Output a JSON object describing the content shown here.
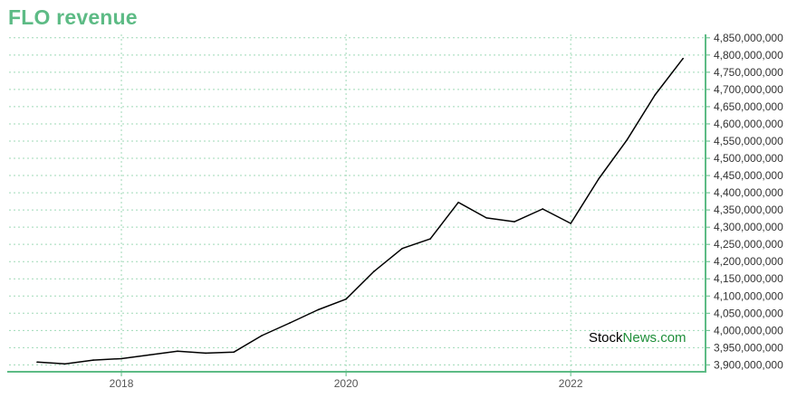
{
  "title": "FLO revenue",
  "watermark": {
    "part1": "Stock",
    "part2": "News",
    "part3": ".com"
  },
  "colors": {
    "title": "#5dbb85",
    "axis": "#5dbb85",
    "grid": "#9fd9b7",
    "line": "#000000"
  },
  "chart_data": {
    "type": "line",
    "title": "FLO revenue",
    "xlabel": "",
    "ylabel": "",
    "x_range": [
      2017.0,
      2023.2
    ],
    "ylim": [
      3880000000,
      4860000000
    ],
    "y_axis_position": "right",
    "grid": true,
    "x_ticks": [
      {
        "value": 2018,
        "label": "2018"
      },
      {
        "value": 2020,
        "label": "2020"
      },
      {
        "value": 2022,
        "label": "2022"
      }
    ],
    "y_ticks": [
      {
        "value": 3900000000,
        "label": "3,900,000,000"
      },
      {
        "value": 3950000000,
        "label": "3,950,000,000"
      },
      {
        "value": 4000000000,
        "label": "4,000,000,000"
      },
      {
        "value": 4050000000,
        "label": "4,050,000,000"
      },
      {
        "value": 4100000000,
        "label": "4,100,000,000"
      },
      {
        "value": 4150000000,
        "label": "4,150,000,000"
      },
      {
        "value": 4200000000,
        "label": "4,200,000,000"
      },
      {
        "value": 4250000000,
        "label": "4,250,000,000"
      },
      {
        "value": 4300000000,
        "label": "4,300,000,000"
      },
      {
        "value": 4350000000,
        "label": "4,350,000,000"
      },
      {
        "value": 4400000000,
        "label": "4,400,000,000"
      },
      {
        "value": 4450000000,
        "label": "4,450,000,000"
      },
      {
        "value": 4500000000,
        "label": "4,500,000,000"
      },
      {
        "value": 4550000000,
        "label": "4,550,000,000"
      },
      {
        "value": 4600000000,
        "label": "4,600,000,000"
      },
      {
        "value": 4650000000,
        "label": "4,650,000,000"
      },
      {
        "value": 4700000000,
        "label": "4,700,000,000"
      },
      {
        "value": 4750000000,
        "label": "4,750,000,000"
      },
      {
        "value": 4800000000,
        "label": "4,800,000,000"
      },
      {
        "value": 4850000000,
        "label": "4,850,000,000"
      }
    ],
    "series": [
      {
        "points": [
          [
            2017.25,
            3908000000
          ],
          [
            2017.5,
            3903000000
          ],
          [
            2017.75,
            3914000000
          ],
          [
            2018.0,
            3918000000
          ],
          [
            2018.25,
            3929000000
          ],
          [
            2018.5,
            3940000000
          ],
          [
            2018.75,
            3934000000
          ],
          [
            2019.0,
            3937000000
          ],
          [
            2019.25,
            3985000000
          ],
          [
            2019.5,
            4022000000
          ],
          [
            2019.75,
            4060000000
          ],
          [
            2020.0,
            4091000000
          ],
          [
            2020.25,
            4172000000
          ],
          [
            2020.5,
            4238000000
          ],
          [
            2020.75,
            4266000000
          ],
          [
            2021.0,
            4372000000
          ],
          [
            2021.25,
            4327000000
          ],
          [
            2021.5,
            4316000000
          ],
          [
            2021.75,
            4353000000
          ],
          [
            2022.0,
            4311000000
          ],
          [
            2022.25,
            4441000000
          ],
          [
            2022.5,
            4553000000
          ],
          [
            2022.75,
            4684000000
          ],
          [
            2023.0,
            4790000000
          ]
        ]
      }
    ]
  }
}
